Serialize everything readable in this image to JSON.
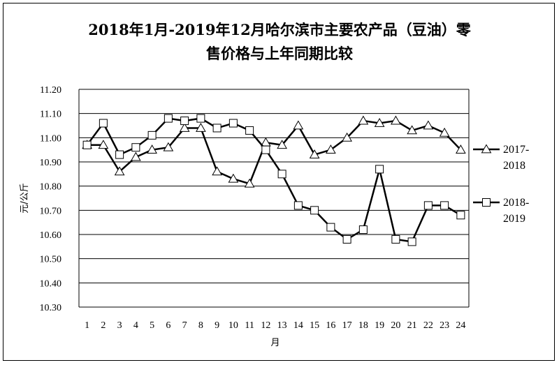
{
  "chart_data": {
    "type": "line",
    "title_line1": "2018年1月-2019年12月哈尔滨市主要农产品（豆油）零",
    "title_line2": "售价格与上年同期比较",
    "xlabel": "月",
    "ylabel": "元/公斤",
    "x": [
      "1",
      "2",
      "3",
      "4",
      "5",
      "6",
      "7",
      "8",
      "9",
      "10",
      "11",
      "12",
      "13",
      "14",
      "15",
      "16",
      "17",
      "18",
      "19",
      "20",
      "21",
      "22",
      "23",
      "24"
    ],
    "ylim": [
      10.3,
      11.2
    ],
    "yticks": [
      "10.30",
      "10.40",
      "10.50",
      "10.60",
      "10.70",
      "10.80",
      "10.90",
      "11.00",
      "11.10",
      "11.20"
    ],
    "grid": true,
    "legend_position": "right",
    "series": [
      {
        "name_line1": "2017-",
        "name_line2": "2018",
        "marker": "triangle",
        "color": "#000000",
        "values": [
          10.97,
          10.97,
          10.86,
          10.92,
          10.95,
          10.96,
          11.04,
          11.04,
          10.86,
          10.83,
          10.81,
          10.98,
          10.97,
          11.05,
          10.93,
          10.95,
          11.0,
          11.07,
          11.06,
          11.07,
          11.03,
          11.05,
          11.02,
          10.95
        ]
      },
      {
        "name_line1": "2018-",
        "name_line2": "2019",
        "marker": "square",
        "color": "#000000",
        "values": [
          10.97,
          11.06,
          10.93,
          10.96,
          11.01,
          11.08,
          11.07,
          11.08,
          11.04,
          11.06,
          11.03,
          10.95,
          10.85,
          10.72,
          10.7,
          10.63,
          10.58,
          10.62,
          10.87,
          10.58,
          10.57,
          10.72,
          10.72,
          10.68
        ]
      }
    ]
  }
}
